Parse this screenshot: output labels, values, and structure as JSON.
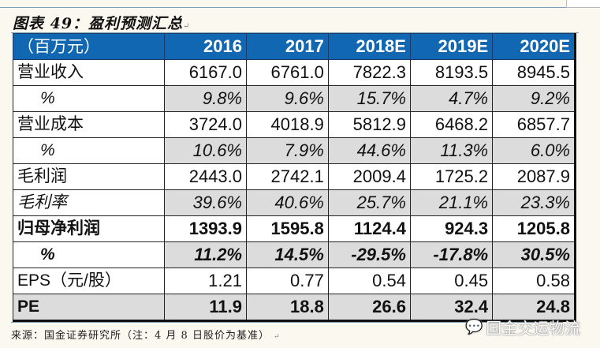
{
  "title": "图表 49：盈利预测汇总",
  "table": {
    "header": [
      "（百万元）",
      "2016",
      "2017",
      "2018E",
      "2019E",
      "2020E"
    ],
    "rows": [
      {
        "label": "营业收入",
        "values": [
          "6167.0",
          "6761.0",
          "7822.3",
          "8193.5",
          "8945.5"
        ]
      },
      {
        "label": "%",
        "values": [
          "9.8%",
          "9.6%",
          "15.7%",
          "4.7%",
          "9.2%"
        ]
      },
      {
        "label": "营业成本",
        "values": [
          "3724.0",
          "4018.9",
          "5812.9",
          "6468.2",
          "6857.7"
        ]
      },
      {
        "label": "%",
        "values": [
          "10.6%",
          "7.9%",
          "44.6%",
          "11.3%",
          "6.0%"
        ]
      },
      {
        "label": "毛利润",
        "values": [
          "2443.0",
          "2742.1",
          "2009.4",
          "1725.2",
          "2087.9"
        ]
      },
      {
        "label": "毛利率",
        "values": [
          "39.6%",
          "40.6%",
          "25.7%",
          "21.1%",
          "23.3%"
        ]
      },
      {
        "label": "归母净利润",
        "values": [
          "1393.9",
          "1595.8",
          "1124.4",
          "924.3",
          "1205.8"
        ]
      },
      {
        "label": "%",
        "values": [
          "11.2%",
          "14.5%",
          "-29.5%",
          "-17.8%",
          "30.5%"
        ]
      },
      {
        "label": "EPS（元/股）",
        "values": [
          "1.21",
          "0.77",
          "0.54",
          "0.45",
          "0.58"
        ]
      },
      {
        "label": "PE",
        "values": [
          "11.9",
          "18.8",
          "26.6",
          "32.4",
          "24.8"
        ]
      }
    ]
  },
  "footer": "来源：国金证券研究所（注：4 月 8 日股价为基准）",
  "watermark": {
    "icon": "wechat-icon",
    "text": "国金交运物流"
  },
  "colors": {
    "header_bg": "#1167b1",
    "alt_row_bg": "#dcdcdc"
  }
}
